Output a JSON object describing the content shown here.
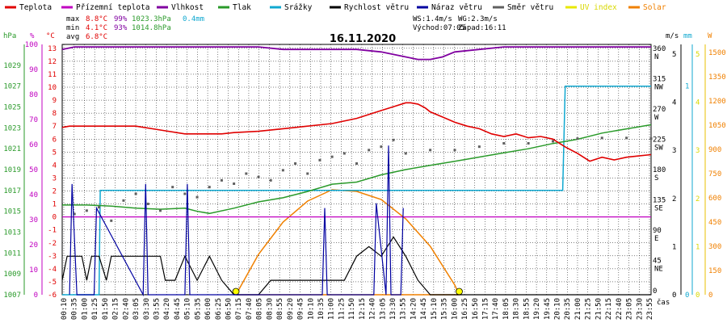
{
  "legend": [
    {
      "label": "Teplota",
      "color": "#e00000"
    },
    {
      "label": "Přízemní teplota",
      "color": "#c000c0"
    },
    {
      "label": "Vlhkost",
      "color": "#8000a0"
    },
    {
      "label": "Tlak",
      "color": "#2a9a2a"
    },
    {
      "label": "Srážky",
      "color": "#10a8d0"
    },
    {
      "label": "Rychlost větru",
      "color": "#000000"
    },
    {
      "label": "Náraz větru",
      "color": "#0000a0"
    },
    {
      "label": "Směr větru",
      "color": "#606060"
    },
    {
      "label": "UV index",
      "color": "#e8e800"
    },
    {
      "label": "Solar",
      "color": "#f08000"
    }
  ],
  "stats": {
    "max_label": "max",
    "max_temp": "8.8°C",
    "max_hum": "99%",
    "max_press": "1023.3hPa",
    "max_rain": "0.4mm",
    "min_label": "min",
    "min_temp": "4.1°C",
    "min_hum": "93%",
    "min_press": "1014.8hPa",
    "avg_label": "avg",
    "avg_temp": "6.8°C"
  },
  "wind_info": {
    "ws": "WS:1.4m/s",
    "wg": "WG:2.3m/s",
    "sunrise": "Východ:07:05",
    "sunset": "Západ:16:11"
  },
  "title": "16.11.2020",
  "axis_units": {
    "hpa": "hPa",
    "pct": "%",
    "degc": "°C",
    "ms": "m/s",
    "mm": "mm",
    "w": "W",
    "cas": "čas"
  },
  "colors": {
    "hpa": "#2a9a2a",
    "pct": "#c000c0",
    "degc": "#e00000",
    "ms": "#000000",
    "mm": "#10a8d0",
    "w": "#f08000"
  },
  "chart_data": {
    "type": "line",
    "title": "16.11.2020",
    "x_ticks": [
      "00:10",
      "00:35",
      "01:00",
      "01:25",
      "01:50",
      "02:15",
      "02:40",
      "03:05",
      "03:30",
      "03:55",
      "04:20",
      "04:45",
      "05:10",
      "05:35",
      "06:00",
      "06:25",
      "06:50",
      "07:15",
      "07:40",
      "08:05",
      "08:30",
      "08:55",
      "09:20",
      "09:45",
      "10:10",
      "10:35",
      "11:00",
      "11:25",
      "11:50",
      "12:15",
      "12:40",
      "13:05",
      "13:30",
      "13:55",
      "14:20",
      "14:45",
      "15:10",
      "15:35",
      "16:00",
      "16:25",
      "16:50",
      "17:15",
      "17:40",
      "18:05",
      "18:30",
      "18:55",
      "19:20",
      "19:45",
      "20:10",
      "20:35",
      "21:00",
      "21:25",
      "21:50",
      "22:15",
      "22:40",
      "23:05",
      "23:30",
      "23:55"
    ],
    "xlim": [
      0,
      24
    ],
    "axes": {
      "pressure_hpa": {
        "ticks": [
          1007,
          1009,
          1011,
          1013,
          1015,
          1017,
          1019,
          1021,
          1023,
          1025,
          1027,
          1029
        ],
        "lim": [
          1007,
          1031
        ]
      },
      "humidity_pct": {
        "ticks": [
          0,
          10,
          20,
          30,
          40,
          50,
          60,
          70,
          80,
          90,
          100
        ],
        "lim": [
          0,
          100
        ]
      },
      "temp_c": {
        "ticks": [
          -6,
          -5,
          -4,
          -3,
          -2,
          -1,
          0,
          1,
          2,
          3,
          4,
          5,
          6,
          7,
          8,
          9,
          10,
          11,
          12,
          13
        ],
        "lim": [
          -6,
          13.3
        ]
      },
      "wind_dir": {
        "ticks": [
          {
            "v": 0,
            "l": "0"
          },
          {
            "v": 45,
            "l": "45 NE"
          },
          {
            "v": 90,
            "l": "90 E"
          },
          {
            "v": 135,
            "l": "135 SE"
          },
          {
            "v": 180,
            "l": "180 S"
          },
          {
            "v": 225,
            "l": "225 SW"
          },
          {
            "v": 270,
            "l": "270 W"
          },
          {
            "v": 315,
            "l": "315 NW"
          },
          {
            "v": 360,
            "l": "360 N"
          }
        ],
        "lim": [
          0,
          372
        ]
      },
      "wind_ms": {
        "ticks": [
          0,
          1,
          2,
          3,
          4,
          5
        ],
        "lim": [
          0,
          5.2
        ]
      },
      "rain_mm": {
        "ticks": [
          0,
          1
        ],
        "lim": [
          0,
          1.2
        ]
      },
      "uv": {
        "ticks": [
          0,
          1,
          2,
          3,
          4,
          5
        ],
        "lim": [
          0,
          5.2
        ]
      },
      "solar_w": {
        "ticks": [
          0,
          150,
          300,
          450,
          600,
          750,
          900,
          1050,
          1200,
          1350,
          1500
        ],
        "lim": [
          0,
          1550
        ]
      }
    },
    "series": [
      {
        "name": "Teplota",
        "axis": "temp_c",
        "x": [
          0,
          0.3,
          1,
          2,
          3,
          4,
          5,
          6,
          6.5,
          7,
          8,
          9,
          10,
          11,
          12,
          12.5,
          13,
          13.5,
          14,
          14.2,
          14.5,
          14.8,
          15,
          15.5,
          16,
          16.5,
          17,
          17.5,
          18,
          18.5,
          19,
          19.5,
          20,
          20.5,
          21,
          21.5,
          22,
          22.5,
          23,
          23.5,
          24
        ],
        "y": [
          6.9,
          7.0,
          7.0,
          7.0,
          7.0,
          6.7,
          6.4,
          6.4,
          6.4,
          6.5,
          6.6,
          6.8,
          7.0,
          7.2,
          7.6,
          7.9,
          8.2,
          8.5,
          8.8,
          8.8,
          8.7,
          8.4,
          8.1,
          7.7,
          7.3,
          7.0,
          6.8,
          6.4,
          6.2,
          6.4,
          6.1,
          6.2,
          6.0,
          5.4,
          4.9,
          4.3,
          4.6,
          4.4,
          4.6,
          4.7,
          4.8
        ]
      },
      {
        "name": "Přízemní teplota",
        "axis": "temp_c",
        "x": [
          0,
          24
        ],
        "y": [
          0,
          0
        ]
      },
      {
        "name": "Vlhkost",
        "axis": "humidity_pct",
        "x": [
          0,
          0.5,
          1,
          2,
          3,
          4,
          5,
          6,
          7,
          8,
          9,
          10,
          11,
          12,
          13,
          13.5,
          14,
          14.5,
          15,
          15.5,
          16,
          17,
          18,
          19,
          20,
          21,
          22,
          23,
          24
        ],
        "y": [
          98,
          99,
          99,
          99,
          99,
          99,
          99,
          99,
          99,
          99,
          98,
          98,
          98,
          98,
          97,
          96,
          95,
          94,
          94,
          95,
          97,
          98,
          99,
          99,
          99,
          99,
          99,
          99,
          99
        ]
      },
      {
        "name": "Tlak",
        "axis": "pressure_hpa",
        "x": [
          0,
          1,
          2,
          3,
          4,
          5,
          5.5,
          6,
          7,
          8,
          9,
          10,
          11,
          12,
          13,
          14,
          15,
          16,
          17,
          18,
          19,
          20,
          21,
          22,
          23,
          24
        ],
        "y": [
          1015.6,
          1015.6,
          1015.5,
          1015.3,
          1015.2,
          1015.3,
          1015.0,
          1014.8,
          1015.3,
          1015.9,
          1016.3,
          1016.9,
          1017.6,
          1017.8,
          1018.5,
          1019.0,
          1019.4,
          1019.8,
          1020.2,
          1020.6,
          1021.0,
          1021.5,
          1021.9,
          1022.5,
          1022.9,
          1023.3
        ]
      },
      {
        "name": "Srážky",
        "axis": "rain_mm",
        "x": [
          0,
          1.5,
          1.55,
          20.4,
          20.5,
          24
        ],
        "y": [
          0,
          0,
          0.5,
          0.5,
          1.0,
          1.0
        ]
      },
      {
        "name": "Rychlost větru",
        "axis": "wind_ms",
        "x": [
          0,
          0.2,
          0.5,
          0.8,
          1.0,
          1.2,
          1.5,
          1.8,
          2.0,
          2.3,
          2.6,
          3.0,
          3.5,
          4.0,
          4.2,
          4.6,
          5.0,
          5.5,
          6.0,
          6.5,
          7.0,
          7.5,
          8.0,
          8.5,
          9.0,
          9.5,
          10.0,
          10.5,
          11.0,
          11.5,
          12.0,
          12.5,
          13.0,
          13.5,
          14.0,
          14.5,
          15.0,
          16.0,
          17.0,
          18.0,
          19.0,
          20.0,
          21.0,
          22.0,
          23.0,
          24.0
        ],
        "y": [
          0.3,
          0.8,
          0.8,
          0.8,
          0.3,
          0.8,
          0.8,
          0.3,
          0.8,
          0.8,
          0.8,
          0.8,
          0.8,
          0.8,
          0.3,
          0.3,
          0.8,
          0.3,
          0.8,
          0.3,
          0,
          0,
          0,
          0.3,
          0.3,
          0.3,
          0.3,
          0.3,
          0.3,
          0.3,
          0.8,
          1.0,
          0.8,
          1.2,
          0.8,
          0.3,
          0,
          0,
          0,
          0,
          0,
          0,
          0,
          0,
          0,
          0
        ]
      },
      {
        "name": "Náraz větru",
        "axis": "wind_ms",
        "x": [
          0.3,
          0.4,
          0.6,
          1.3,
          1.4,
          3.3,
          3.4,
          3.5,
          5.0,
          5.1,
          5.2,
          10.6,
          10.7,
          10.8,
          12.7,
          12.8,
          13.2,
          13.3,
          13.4,
          13.8,
          13.9
        ],
        "y": [
          0,
          2.3,
          0,
          0,
          1.8,
          0,
          2.3,
          0,
          0,
          2.3,
          0,
          0,
          1.8,
          0,
          0,
          1.9,
          0,
          3.1,
          0,
          0,
          1.8
        ]
      },
      {
        "name": "Směr větru",
        "axis": "wind_dir",
        "x": [
          0.5,
          1,
          1.5,
          2,
          2.5,
          3,
          3.5,
          4,
          4.5,
          5,
          5.5,
          6,
          6.5,
          7,
          7.5,
          8,
          8.5,
          9,
          9.5,
          10,
          10.5,
          11,
          11.5,
          12,
          12.5,
          13,
          13.5,
          14,
          15,
          16,
          17,
          18,
          19,
          20,
          21,
          22,
          23,
          24
        ],
        "y": [
          120,
          125,
          130,
          110,
          140,
          150,
          135,
          125,
          160,
          150,
          145,
          160,
          170,
          165,
          180,
          175,
          170,
          185,
          195,
          180,
          200,
          205,
          210,
          195,
          215,
          220,
          230,
          210,
          215,
          215,
          220,
          225,
          225,
          228,
          232,
          233,
          233,
          232
        ]
      },
      {
        "name": "UV index",
        "axis": "uv",
        "x": [
          7.08,
          16.18
        ],
        "y": [
          0,
          0
        ]
      },
      {
        "name": "Solar",
        "axis": "solar_w",
        "x": [
          7.08,
          8,
          9,
          10,
          11,
          12,
          13,
          14,
          15,
          16,
          16.18
        ],
        "y": [
          0,
          250,
          450,
          580,
          650,
          640,
          590,
          470,
          300,
          60,
          0
        ]
      }
    ]
  }
}
